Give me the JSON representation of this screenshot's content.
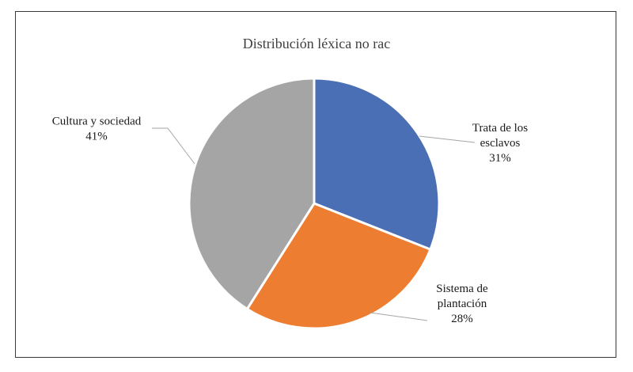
{
  "chart_data": {
    "type": "pie",
    "title": "Distribución léxica no rac",
    "slices": [
      {
        "label_lines": [
          "Trata de los",
          "esclavos"
        ],
        "percent_label": "31%",
        "value": 31,
        "color": "#4a6fb5"
      },
      {
        "label_lines": [
          "Sistema de",
          "plantación"
        ],
        "percent_label": "28%",
        "value": 28,
        "color": "#ed7d31"
      },
      {
        "label_lines": [
          "Cultura y sociedad"
        ],
        "percent_label": "41%",
        "value": 41,
        "color": "#a5a5a5"
      }
    ],
    "legend": "none",
    "labels": "outside-with-leader-lines"
  }
}
